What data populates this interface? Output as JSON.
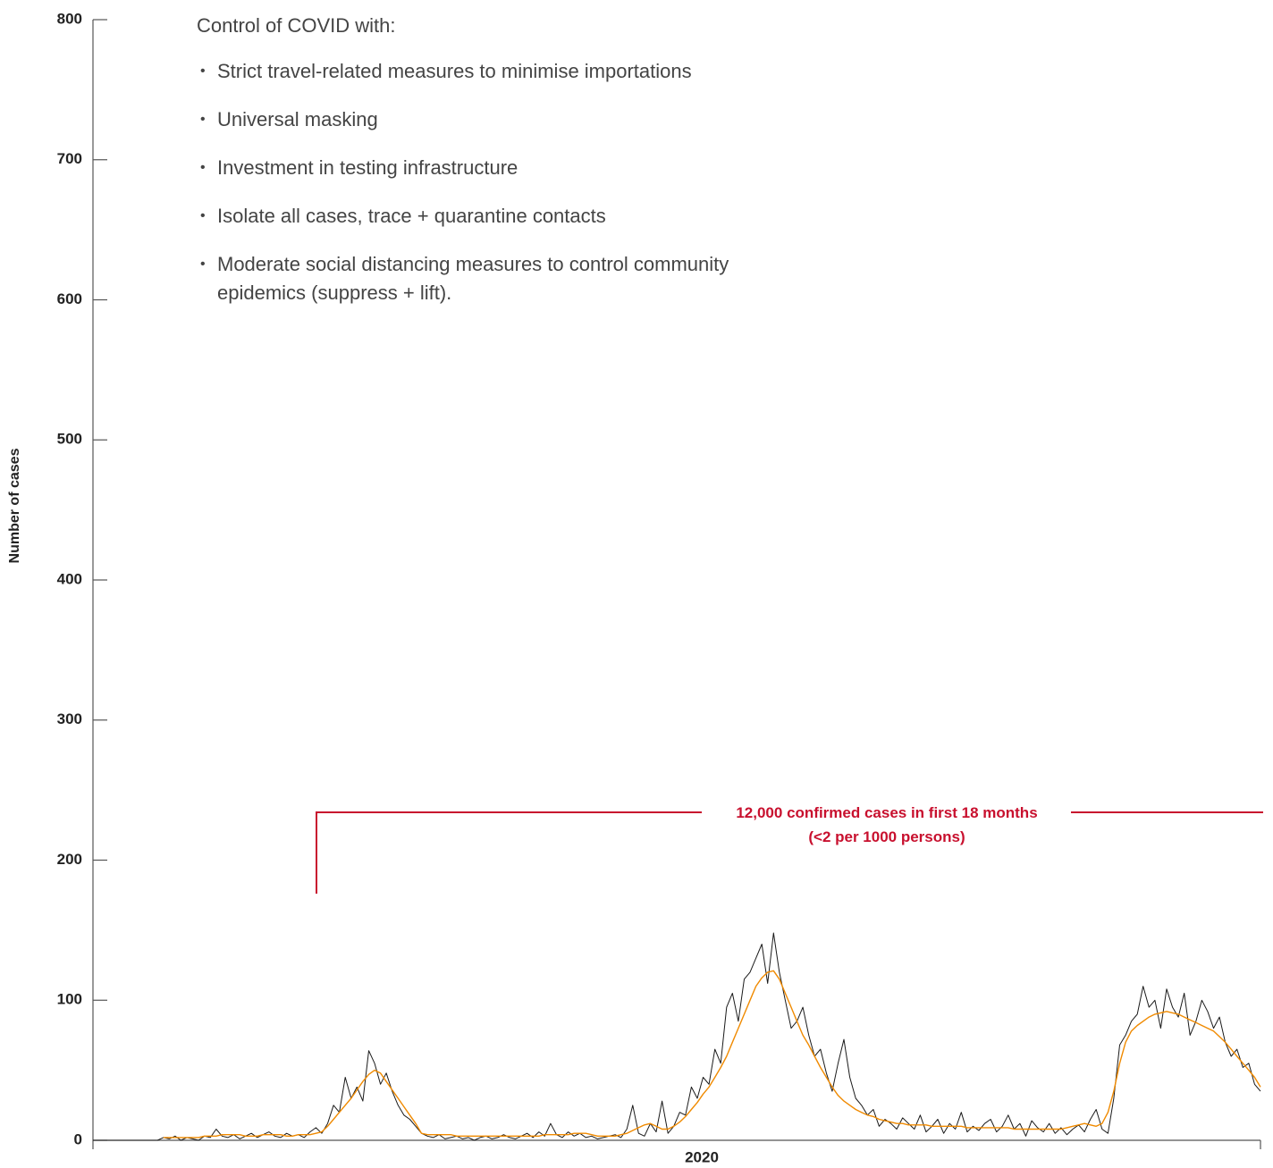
{
  "chart_data": {
    "type": "line",
    "ylabel": "Number of cases",
    "xlabel": "2020",
    "ylim": [
      0,
      800
    ],
    "yticks": [
      0,
      100,
      200,
      300,
      400,
      500,
      600,
      700,
      800
    ],
    "heading": "Control of COVID with:",
    "bullets": [
      "Strict travel-related measures to minimise importations",
      "Universal masking",
      "Investment in testing infrastructure",
      "Isolate all cases, trace + quarantine contacts",
      "Moderate social distancing measures to control community epidemics (suppress + lift)."
    ],
    "bracket_text": [
      "12,000 confirmed cases in first 18 months",
      "(<2 per 1000 persons)"
    ],
    "bracket_color": "#c8102e",
    "series": [
      {
        "color": "#1a1a1a",
        "values": [
          0,
          0,
          0,
          0,
          0,
          0,
          0,
          0,
          0,
          0,
          0,
          0,
          2,
          1,
          3,
          0,
          2,
          1,
          0,
          3,
          2,
          8,
          3,
          2,
          4,
          1,
          3,
          5,
          2,
          4,
          6,
          3,
          2,
          5,
          3,
          4,
          2,
          6,
          9,
          5,
          12,
          25,
          20,
          45,
          30,
          38,
          28,
          64,
          55,
          40,
          48,
          35,
          25,
          18,
          15,
          10,
          5,
          3,
          2,
          4,
          1,
          2,
          3,
          1,
          2,
          0,
          2,
          3,
          1,
          2,
          4,
          2,
          1,
          3,
          5,
          2,
          6,
          3,
          12,
          4,
          2,
          6,
          3,
          5,
          2,
          3,
          1,
          2,
          3,
          4,
          2,
          8,
          25,
          5,
          3,
          12,
          6,
          28,
          5,
          10,
          20,
          18,
          38,
          30,
          45,
          40,
          65,
          55,
          95,
          105,
          85,
          115,
          120,
          130,
          140,
          112,
          148,
          120,
          100,
          80,
          85,
          95,
          75,
          60,
          65,
          48,
          35,
          55,
          72,
          45,
          30,
          25,
          18,
          22,
          10,
          15,
          12,
          8,
          16,
          12,
          8,
          18,
          6,
          10,
          15,
          5,
          12,
          8,
          20,
          6,
          10,
          7,
          12,
          15,
          6,
          10,
          18,
          8,
          12,
          3,
          14,
          9,
          6,
          12,
          5,
          9,
          4,
          8,
          11,
          6,
          15,
          22,
          8,
          5,
          30,
          68,
          75,
          85,
          90,
          110,
          95,
          100,
          80,
          108,
          95,
          88,
          105,
          75,
          85,
          100,
          92,
          80,
          88,
          70,
          60,
          65,
          52,
          55,
          40,
          35
        ]
      },
      {
        "color": "#f08a00",
        "values": [
          null,
          null,
          null,
          null,
          null,
          null,
          null,
          null,
          null,
          null,
          null,
          null,
          2,
          2,
          2,
          2,
          2,
          2,
          2,
          3,
          3,
          3,
          4,
          4,
          4,
          4,
          3,
          3,
          3,
          4,
          4,
          4,
          4,
          3,
          3,
          4,
          4,
          4,
          5,
          6,
          10,
          15,
          20,
          25,
          30,
          36,
          42,
          47,
          50,
          48,
          42,
          36,
          30,
          24,
          18,
          12,
          5,
          4,
          4,
          4,
          4,
          4,
          3,
          3,
          3,
          3,
          3,
          3,
          3,
          3,
          3,
          3,
          3,
          3,
          3,
          3,
          3,
          4,
          4,
          4,
          4,
          4,
          5,
          5,
          5,
          4,
          3,
          3,
          3,
          3,
          4,
          5,
          7,
          9,
          11,
          12,
          10,
          8,
          8,
          10,
          13,
          17,
          22,
          27,
          33,
          38,
          45,
          52,
          60,
          70,
          80,
          90,
          100,
          110,
          116,
          120,
          121,
          115,
          105,
          95,
          85,
          75,
          68,
          60,
          52,
          45,
          38,
          32,
          28,
          25,
          22,
          20,
          18,
          17,
          15,
          14,
          13,
          12,
          12,
          11,
          11,
          11,
          11,
          10,
          10,
          10,
          10,
          10,
          10,
          9,
          9,
          9,
          9,
          9,
          9,
          9,
          9,
          8,
          8,
          8,
          8,
          8,
          8,
          8,
          8,
          8,
          9,
          10,
          11,
          12,
          11,
          10,
          12,
          20,
          35,
          55,
          70,
          78,
          82,
          85,
          88,
          90,
          91,
          92,
          91,
          90,
          88,
          86,
          84,
          82,
          80,
          78,
          74,
          70,
          65,
          60,
          55,
          50,
          45,
          38
        ]
      }
    ]
  }
}
